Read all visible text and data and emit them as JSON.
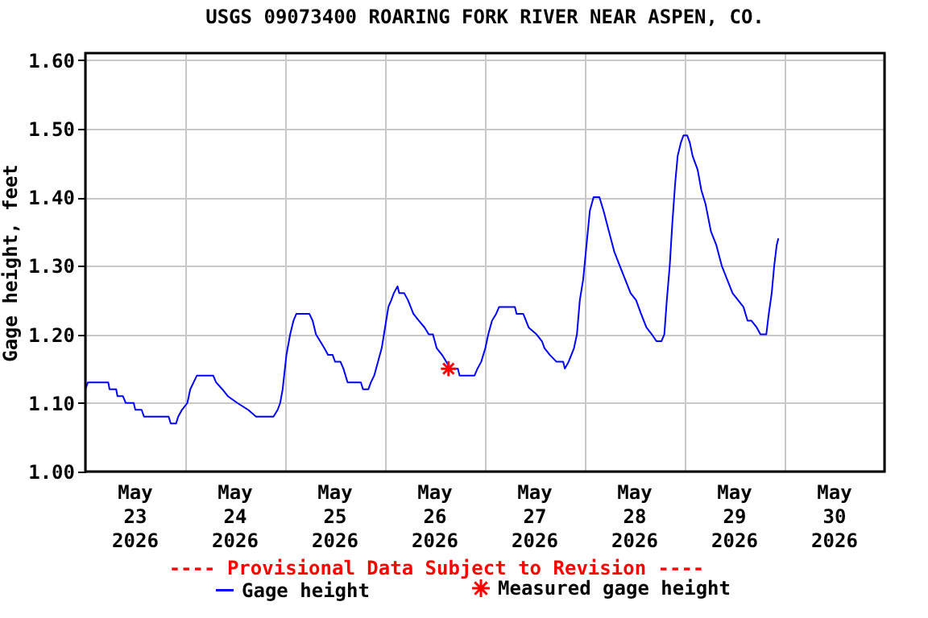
{
  "chart_data": {
    "type": "line",
    "title": "USGS 09073400 ROARING FORK RIVER NEAR ASPEN, CO.",
    "ylabel": "Gage height, feet",
    "annotations": [
      "---- Provisional Data Subject to Revision ----"
    ],
    "xlim": [
      "2026-05-23T00:00",
      "2026-05-31T00:00"
    ],
    "xticks": [
      {
        "value": "2026-05-23T00:00",
        "label": null
      },
      {
        "value": "2026-05-23T12:00",
        "label": "May 23 2026"
      },
      {
        "value": "2026-05-24T00:00",
        "label": null
      },
      {
        "value": "2026-05-24T12:00",
        "label": "May 24 2026"
      },
      {
        "value": "2026-05-25T00:00",
        "label": null
      },
      {
        "value": "2026-05-25T12:00",
        "label": "May 25 2026"
      },
      {
        "value": "2026-05-26T00:00",
        "label": null
      },
      {
        "value": "2026-05-26T12:00",
        "label": "May 26 2026"
      },
      {
        "value": "2026-05-27T00:00",
        "label": null
      },
      {
        "value": "2026-05-27T12:00",
        "label": "May 27 2026"
      },
      {
        "value": "2026-05-28T00:00",
        "label": null
      },
      {
        "value": "2026-05-28T12:00",
        "label": "May 28 2026"
      },
      {
        "value": "2026-05-29T00:00",
        "label": null
      },
      {
        "value": "2026-05-29T12:00",
        "label": "May 29 2026"
      },
      {
        "value": "2026-05-30T00:00",
        "label": null
      },
      {
        "value": "2026-05-30T12:00",
        "label": "May 30 2026"
      },
      {
        "value": "2026-05-31T00:00",
        "label": null
      }
    ],
    "ylim": [
      1.0,
      1.61
    ],
    "yticks": [
      {
        "value": 1.0,
        "label": "1.00"
      },
      {
        "value": 1.1,
        "label": "1.10"
      },
      {
        "value": 1.2,
        "label": "1.20"
      },
      {
        "value": 1.3,
        "label": "1.30"
      },
      {
        "value": 1.4,
        "label": "1.40"
      },
      {
        "value": 1.5,
        "label": "1.50"
      },
      {
        "value": 1.6,
        "label": "1.60"
      }
    ],
    "grid": true,
    "legend": "bottom",
    "series": [
      {
        "name": "Gage height",
        "color": "#0000ff",
        "type": "line",
        "marker": "none",
        "line_style": "solid",
        "x": [
          "2026-05-23T00:00",
          "2026-05-23T00:36",
          "2026-05-23T05:30",
          "2026-05-23T05:48",
          "2026-05-23T07:24",
          "2026-05-23T07:42",
          "2026-05-23T09:00",
          "2026-05-23T09:42",
          "2026-05-23T11:36",
          "2026-05-23T12:00",
          "2026-05-23T13:30",
          "2026-05-23T14:06",
          "2026-05-23T20:00",
          "2026-05-23T20:30",
          "2026-05-23T21:48",
          "2026-05-23T22:18",
          "2026-05-23T23:12",
          "2026-05-24T00:30",
          "2026-05-24T01:12",
          "2026-05-24T02:00",
          "2026-05-24T02:48",
          "2026-05-24T06:42",
          "2026-05-24T07:24",
          "2026-05-24T08:54",
          "2026-05-24T10:12",
          "2026-05-24T12:30",
          "2026-05-24T15:06",
          "2026-05-24T17:00",
          "2026-05-24T21:12",
          "2026-05-24T22:12",
          "2026-05-24T22:48",
          "2026-05-24T23:24",
          "2026-05-25T00:18",
          "2026-05-25T01:12",
          "2026-05-25T02:00",
          "2026-05-25T02:42",
          "2026-05-25T05:48",
          "2026-05-25T06:36",
          "2026-05-25T07:24",
          "2026-05-25T08:24",
          "2026-05-25T09:24",
          "2026-05-25T10:18",
          "2026-05-25T11:24",
          "2026-05-25T12:00",
          "2026-05-25T13:18",
          "2026-05-25T14:00",
          "2026-05-25T15:00",
          "2026-05-25T18:12",
          "2026-05-25T18:42",
          "2026-05-25T20:00",
          "2026-05-25T20:36",
          "2026-05-25T21:24",
          "2026-05-25T22:18",
          "2026-05-25T23:12",
          "2026-05-26T00:00",
          "2026-05-26T00:48",
          "2026-05-26T01:30",
          "2026-05-26T02:06",
          "2026-05-26T03:00",
          "2026-05-26T03:24",
          "2026-05-26T04:36",
          "2026-05-26T05:30",
          "2026-05-26T06:48",
          "2026-05-26T08:06",
          "2026-05-26T09:30",
          "2026-05-26T10:30",
          "2026-05-26T11:30",
          "2026-05-26T12:24",
          "2026-05-26T13:42",
          "2026-05-26T14:42",
          "2026-05-26T15:42",
          "2026-05-26T17:30",
          "2026-05-26T17:54",
          "2026-05-26T21:30",
          "2026-05-26T22:12",
          "2026-05-26T23:06",
          "2026-05-27T00:06",
          "2026-05-27T00:48",
          "2026-05-27T01:42",
          "2026-05-27T02:42",
          "2026-05-27T03:24",
          "2026-05-27T07:12",
          "2026-05-27T07:36",
          "2026-05-27T09:12",
          "2026-05-27T10:30",
          "2026-05-27T12:24",
          "2026-05-27T13:42",
          "2026-05-27T14:18",
          "2026-05-27T15:36",
          "2026-05-27T17:12",
          "2026-05-27T18:48",
          "2026-05-27T19:12",
          "2026-05-27T20:06",
          "2026-05-27T21:24",
          "2026-05-27T22:06",
          "2026-05-27T22:48",
          "2026-05-27T23:36",
          "2026-05-28T00:24",
          "2026-05-28T01:12",
          "2026-05-28T02:06",
          "2026-05-28T03:30",
          "2026-05-28T04:30",
          "2026-05-28T05:48",
          "2026-05-28T07:06",
          "2026-05-28T08:24",
          "2026-05-28T09:42",
          "2026-05-28T11:00",
          "2026-05-28T12:18",
          "2026-05-28T13:30",
          "2026-05-28T14:48",
          "2026-05-28T16:06",
          "2026-05-28T17:12",
          "2026-05-28T18:24",
          "2026-05-28T19:06",
          "2026-05-28T19:42",
          "2026-05-28T20:24",
          "2026-05-28T21:00",
          "2026-05-28T21:42",
          "2026-05-28T22:18",
          "2026-05-28T23:06",
          "2026-05-28T23:42",
          "2026-05-29T00:36",
          "2026-05-29T01:12",
          "2026-05-29T01:54",
          "2026-05-29T03:06",
          "2026-05-29T04:00",
          "2026-05-29T05:00",
          "2026-05-29T06:18",
          "2026-05-29T07:36",
          "2026-05-29T08:54",
          "2026-05-29T10:12",
          "2026-05-29T11:30",
          "2026-05-29T12:48",
          "2026-05-29T14:06",
          "2026-05-29T15:06",
          "2026-05-29T16:00",
          "2026-05-29T17:18",
          "2026-05-29T18:12",
          "2026-05-29T19:36",
          "2026-05-29T20:12",
          "2026-05-29T20:54",
          "2026-05-29T21:30",
          "2026-05-29T22:06",
          "2026-05-29T22:30"
        ],
        "values": [
          1.12,
          1.13,
          1.13,
          1.12,
          1.12,
          1.11,
          1.11,
          1.1,
          1.1,
          1.09,
          1.09,
          1.08,
          1.08,
          1.07,
          1.07,
          1.08,
          1.09,
          1.1,
          1.12,
          1.13,
          1.14,
          1.14,
          1.13,
          1.12,
          1.11,
          1.1,
          1.09,
          1.08,
          1.08,
          1.09,
          1.1,
          1.12,
          1.17,
          1.2,
          1.22,
          1.23,
          1.23,
          1.22,
          1.2,
          1.19,
          1.18,
          1.17,
          1.17,
          1.16,
          1.16,
          1.15,
          1.13,
          1.13,
          1.12,
          1.12,
          1.13,
          1.14,
          1.16,
          1.18,
          1.21,
          1.24,
          1.25,
          1.26,
          1.27,
          1.26,
          1.26,
          1.25,
          1.23,
          1.22,
          1.21,
          1.2,
          1.2,
          1.18,
          1.17,
          1.16,
          1.15,
          1.15,
          1.14,
          1.14,
          1.15,
          1.16,
          1.18,
          1.2,
          1.22,
          1.23,
          1.24,
          1.24,
          1.23,
          1.23,
          1.21,
          1.2,
          1.19,
          1.18,
          1.17,
          1.16,
          1.16,
          1.15,
          1.16,
          1.18,
          1.2,
          1.25,
          1.28,
          1.33,
          1.38,
          1.4,
          1.4,
          1.38,
          1.35,
          1.32,
          1.3,
          1.28,
          1.26,
          1.25,
          1.23,
          1.21,
          1.2,
          1.19,
          1.19,
          1.2,
          1.25,
          1.3,
          1.36,
          1.42,
          1.46,
          1.48,
          1.49,
          1.49,
          1.48,
          1.46,
          1.44,
          1.41,
          1.39,
          1.35,
          1.33,
          1.3,
          1.28,
          1.26,
          1.25,
          1.24,
          1.22,
          1.22,
          1.21,
          1.2,
          1.2,
          1.23,
          1.26,
          1.3,
          1.33,
          1.34
        ]
      },
      {
        "name": "Measured gage height",
        "color": "#ff0000",
        "type": "scatter",
        "marker": "cross",
        "x": [
          "2026-05-26T15:15"
        ],
        "values": [
          1.15
        ]
      }
    ]
  }
}
